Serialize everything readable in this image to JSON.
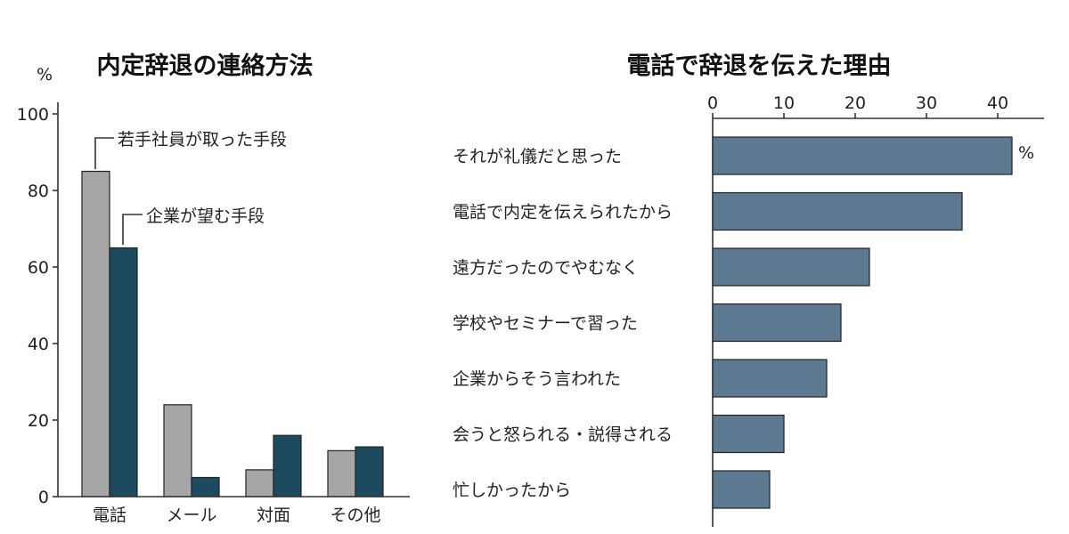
{
  "chart_data": [
    {
      "type": "bar",
      "title": "内定辞退の連絡方法",
      "ylabel": "%",
      "xlabel": "",
      "ylim": [
        0,
        100
      ],
      "yticks": [
        0,
        20,
        40,
        60,
        80,
        100
      ],
      "categories": [
        "電話",
        "メール",
        "対面",
        "その他"
      ],
      "series": [
        {
          "name": "若手社員が取った手段",
          "color": "#a6a6a6",
          "values": [
            85,
            24,
            7,
            12
          ]
        },
        {
          "name": "企業が望む手段",
          "color": "#1d4a5e",
          "values": [
            65,
            5,
            16,
            13
          ]
        }
      ],
      "legend": "annotations"
    },
    {
      "type": "bar",
      "orientation": "horizontal",
      "title": "電話で辞退を伝えた理由",
      "unit": "%",
      "xlim": [
        0,
        46
      ],
      "xticks": [
        0,
        10,
        20,
        30,
        40
      ],
      "categories": [
        "それが礼儀だと思った",
        "電話で内定を伝えられたから",
        "遠方だったのでやむなく",
        "学校やセミナーで習った",
        "企業からそう言われた",
        "会うと怒られる・説得される",
        "忙しかったから"
      ],
      "values": [
        42,
        35,
        22,
        18,
        16,
        10,
        8
      ],
      "color": "#5e7a92"
    }
  ]
}
